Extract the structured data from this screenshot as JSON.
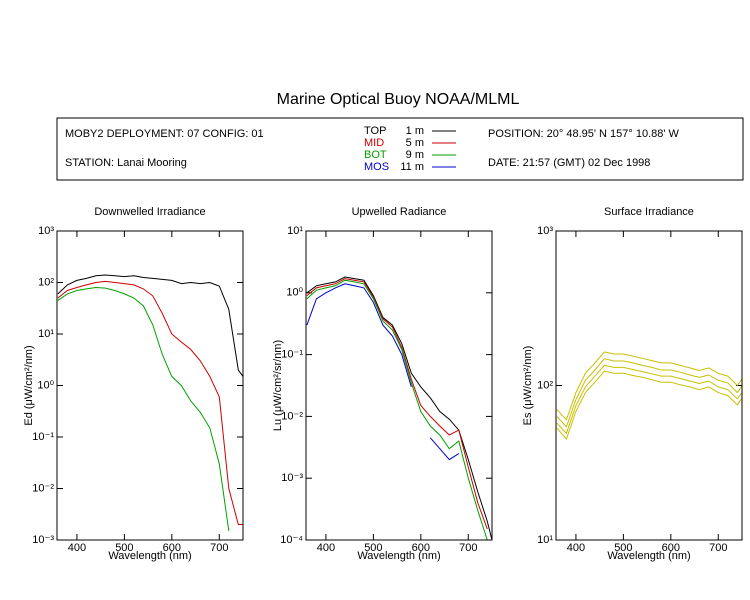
{
  "header": {
    "title": "Marine Optical Buoy NOAA/MLML",
    "deployment": "MOBY2 DEPLOYMENT: 07 CONFIG: 01",
    "station": "STATION: Lanai Mooring",
    "position": "POSITION: 20° 48.95' N   157° 10.88' W",
    "date": "DATE: 21:57 (GMT) 02 Dec 1998",
    "legend": [
      {
        "label": "TOP",
        "depth": "1  m",
        "color": "#000000"
      },
      {
        "label": "MID",
        "depth": "5  m",
        "color": "#cc0000"
      },
      {
        "label": "BOT",
        "depth": "9  m",
        "color": "#00a000"
      },
      {
        "label": "MOS",
        "depth": "11  m",
        "color": "#0000cc"
      }
    ]
  },
  "chart_data": [
    {
      "type": "line",
      "title": "Downwelled Irradiance",
      "x_label": "Wavelength (nm)",
      "y_label": "Ed  (μW/cm²/nm)",
      "log_y": true,
      "xlim": [
        358,
        750
      ],
      "ylim": [
        0.001,
        1000
      ],
      "xticks": [
        400,
        500,
        600,
        700
      ],
      "yticks": [
        {
          "value": 0.001,
          "label": "10⁻³"
        },
        {
          "value": 0.01,
          "label": "10⁻²"
        },
        {
          "value": 0.1,
          "label": "10⁻¹"
        },
        {
          "value": 1,
          "label": "10⁰"
        },
        {
          "value": 10,
          "label": "10¹"
        },
        {
          "value": 100,
          "label": "10²"
        },
        {
          "value": 1000,
          "label": "10³"
        }
      ],
      "x": [
        360,
        380,
        400,
        420,
        440,
        460,
        480,
        500,
        520,
        540,
        560,
        580,
        600,
        620,
        640,
        660,
        680,
        700,
        720,
        740,
        750
      ],
      "series": [
        {
          "color": "#000000",
          "values": [
            60,
            90,
            110,
            120,
            135,
            140,
            135,
            130,
            135,
            125,
            120,
            115,
            110,
            95,
            100,
            95,
            100,
            85,
            30,
            2,
            1.5
          ]
        },
        {
          "color": "#cc0000",
          "values": [
            50,
            70,
            80,
            90,
            100,
            105,
            100,
            95,
            90,
            75,
            55,
            25,
            10,
            7,
            5,
            3,
            1.5,
            0.6,
            0.01,
            0.002,
            0.002
          ]
        },
        {
          "color": "#00a000",
          "values": [
            45,
            60,
            70,
            75,
            80,
            78,
            70,
            60,
            50,
            35,
            15,
            4,
            1.5,
            1.0,
            0.5,
            0.3,
            0.15,
            0.03,
            0.0015,
            null,
            null
          ]
        }
      ]
    },
    {
      "type": "line",
      "title": "Upwelled Radiance",
      "x_label": "Wavelength (nm)",
      "y_label": "Lu  (μW/cm²/sr/nm)",
      "log_y": true,
      "xlim": [
        358,
        750
      ],
      "ylim": [
        0.0001,
        10
      ],
      "xticks": [
        400,
        500,
        600,
        700
      ],
      "yticks": [
        {
          "value": 0.0001,
          "label": "10⁻⁴"
        },
        {
          "value": 0.001,
          "label": "10⁻³"
        },
        {
          "value": 0.01,
          "label": "10⁻²"
        },
        {
          "value": 0.1,
          "label": "10⁻¹"
        },
        {
          "value": 1,
          "label": "10⁰"
        },
        {
          "value": 10,
          "label": "10¹"
        }
      ],
      "x": [
        360,
        380,
        400,
        420,
        440,
        460,
        480,
        500,
        520,
        540,
        560,
        580,
        600,
        620,
        640,
        660,
        680,
        700,
        720,
        740,
        750
      ],
      "series": [
        {
          "color": "#000000",
          "values": [
            1.0,
            1.3,
            1.4,
            1.5,
            1.8,
            1.7,
            1.6,
            0.9,
            0.4,
            0.3,
            0.15,
            0.05,
            0.03,
            0.02,
            0.012,
            0.009,
            0.006,
            0.002,
            0.0006,
            0.0002,
            0.0001
          ]
        },
        {
          "color": "#cc0000",
          "values": [
            0.9,
            1.2,
            1.3,
            1.4,
            1.7,
            1.6,
            1.5,
            0.85,
            0.38,
            0.28,
            0.13,
            0.04,
            0.015,
            0.01,
            0.007,
            0.005,
            0.006,
            0.0015,
            0.0004,
            0.00015,
            null
          ]
        },
        {
          "color": "#00a000",
          "values": [
            0.8,
            1.1,
            1.2,
            1.3,
            1.6,
            1.5,
            1.4,
            0.8,
            0.35,
            0.25,
            0.12,
            0.035,
            0.012,
            0.007,
            0.005,
            0.003,
            0.004,
            0.001,
            0.0003,
            0.0001,
            null
          ]
        },
        {
          "color": "#0000cc",
          "values": [
            0.3,
            0.8,
            1.0,
            1.2,
            1.4,
            1.3,
            1.2,
            0.7,
            0.3,
            0.2,
            0.1,
            0.03,
            null,
            0.0045,
            0.003,
            0.002,
            0.0025,
            null,
            null,
            null,
            null
          ]
        }
      ]
    },
    {
      "type": "line",
      "title": "Surface Irradiance",
      "x_label": "Wavelength (nm)",
      "y_label": "Es  (μW/cm²/nm)",
      "log_y": true,
      "xlim": [
        358,
        750
      ],
      "ylim": [
        10,
        1000
      ],
      "xticks": [
        400,
        500,
        600,
        700
      ],
      "yticks": [
        {
          "value": 10,
          "label": "10¹"
        },
        {
          "value": 100,
          "label": "10²"
        },
        {
          "value": 1000,
          "label": "10³"
        }
      ],
      "x": [
        360,
        380,
        400,
        420,
        440,
        460,
        480,
        500,
        520,
        540,
        560,
        580,
        600,
        620,
        640,
        660,
        680,
        700,
        720,
        740,
        750
      ],
      "series": [
        {
          "color": "#c8c000",
          "values": [
            70,
            60,
            90,
            120,
            140,
            165,
            160,
            160,
            155,
            150,
            145,
            140,
            140,
            135,
            130,
            125,
            130,
            120,
            115,
            100,
            110
          ]
        },
        {
          "color": "#c8c000",
          "values": [
            63,
            54,
            81,
            108,
            126,
            149,
            144,
            144,
            140,
            135,
            131,
            126,
            126,
            122,
            117,
            113,
            117,
            108,
            104,
            90,
            99
          ]
        },
        {
          "color": "#c8c000",
          "values": [
            57,
            49,
            74,
            98,
            115,
            135,
            131,
            131,
            127,
            123,
            119,
            115,
            115,
            111,
            107,
            103,
            107,
            98,
            94,
            82,
            90
          ]
        },
        {
          "color": "#c8c000",
          "values": [
            53,
            45,
            68,
            90,
            105,
            124,
            120,
            120,
            116,
            113,
            109,
            105,
            105,
            101,
            98,
            94,
            98,
            90,
            86,
            75,
            83
          ]
        }
      ]
    }
  ]
}
